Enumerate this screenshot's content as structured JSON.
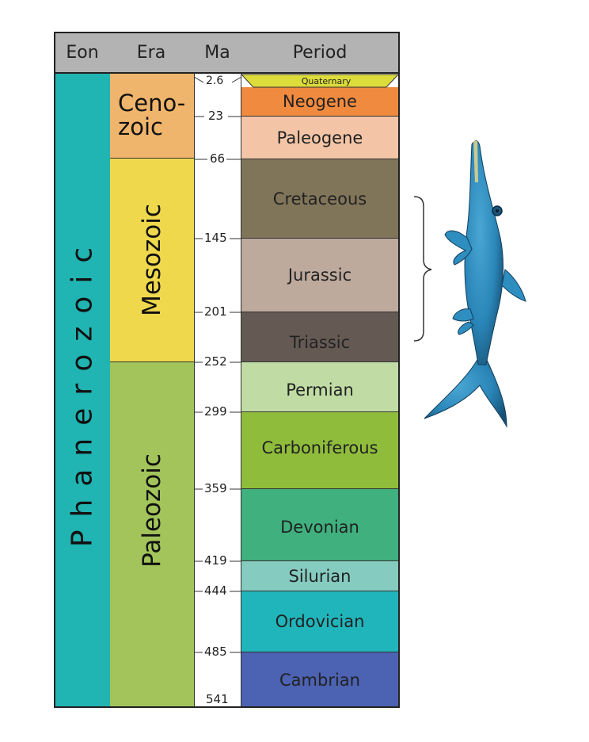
{
  "headers": {
    "eon": "Eon",
    "era": "Era",
    "ma": "Ma",
    "period": "Period"
  },
  "eon": {
    "label": "Phanerozoic",
    "color": "#20b4b2"
  },
  "eras": [
    {
      "id": "cenozoic",
      "label_line1": "Ceno-",
      "label_line2": "zoic",
      "color": "#f0b56c",
      "start": 0,
      "end": 66
    },
    {
      "id": "mesozoic",
      "label": "Mesozoic",
      "color": "#efd84c",
      "start": 66,
      "end": 252
    },
    {
      "id": "paleozoic",
      "label": "Paleozoic",
      "color": "#a2c45a",
      "start": 252,
      "end": 541
    }
  ],
  "periods": [
    {
      "id": "quaternary",
      "label": "Quaternary",
      "color": "#dcdc3b"
    },
    {
      "id": "neogene",
      "label": "Neogene",
      "color": "#f08a3e"
    },
    {
      "id": "paleogene",
      "label": "Paleogene",
      "color": "#f3c5a6"
    },
    {
      "id": "cretaceous",
      "label": "Cretaceous",
      "color": "#817559"
    },
    {
      "id": "jurassic",
      "label": "Jurassic",
      "color": "#bdaa9d"
    },
    {
      "id": "triassic",
      "label": "Triassic",
      "color": "#655a53"
    },
    {
      "id": "permian",
      "label": "Permian",
      "color": "#c0dca4"
    },
    {
      "id": "carboniferous",
      "label": "Carboniferous",
      "color": "#8fbd3b"
    },
    {
      "id": "devonian",
      "label": "Devonian",
      "color": "#3fb07e"
    },
    {
      "id": "silurian",
      "label": "Silurian",
      "color": "#85cbc0"
    },
    {
      "id": "ordovician",
      "label": "Ordovician",
      "color": "#20b5bb"
    },
    {
      "id": "cambrian",
      "label": "Cambrian",
      "color": "#4c62b2"
    }
  ],
  "ma_ticks": [
    "2.6",
    "23",
    "66",
    "145",
    "201",
    "252",
    "299",
    "359",
    "419",
    "444",
    "485",
    "541"
  ],
  "illustration": {
    "bracket_spans": [
      "Cretaceous",
      "Jurassic",
      "Triassic"
    ],
    "animal": "ichthyosaur",
    "animal_color": "#2a86b8"
  }
}
